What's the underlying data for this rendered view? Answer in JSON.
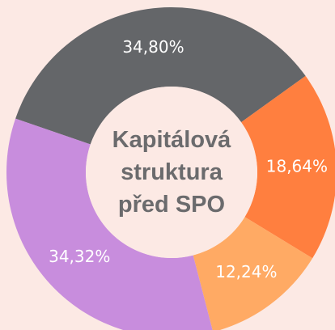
{
  "chart_data": {
    "type": "donut",
    "title": "Kapitálová struktura před SPO",
    "categories": [
      null,
      null,
      null,
      null
    ],
    "values": [
      34.8,
      18.64,
      12.24,
      34.32
    ],
    "value_labels": [
      "34,80%",
      "18,64%",
      "12,24%",
      "34,32%"
    ],
    "colors": [
      "#646669",
      "#ff7f3f",
      "#ffaa64",
      "#c88ddd"
    ]
  }
}
